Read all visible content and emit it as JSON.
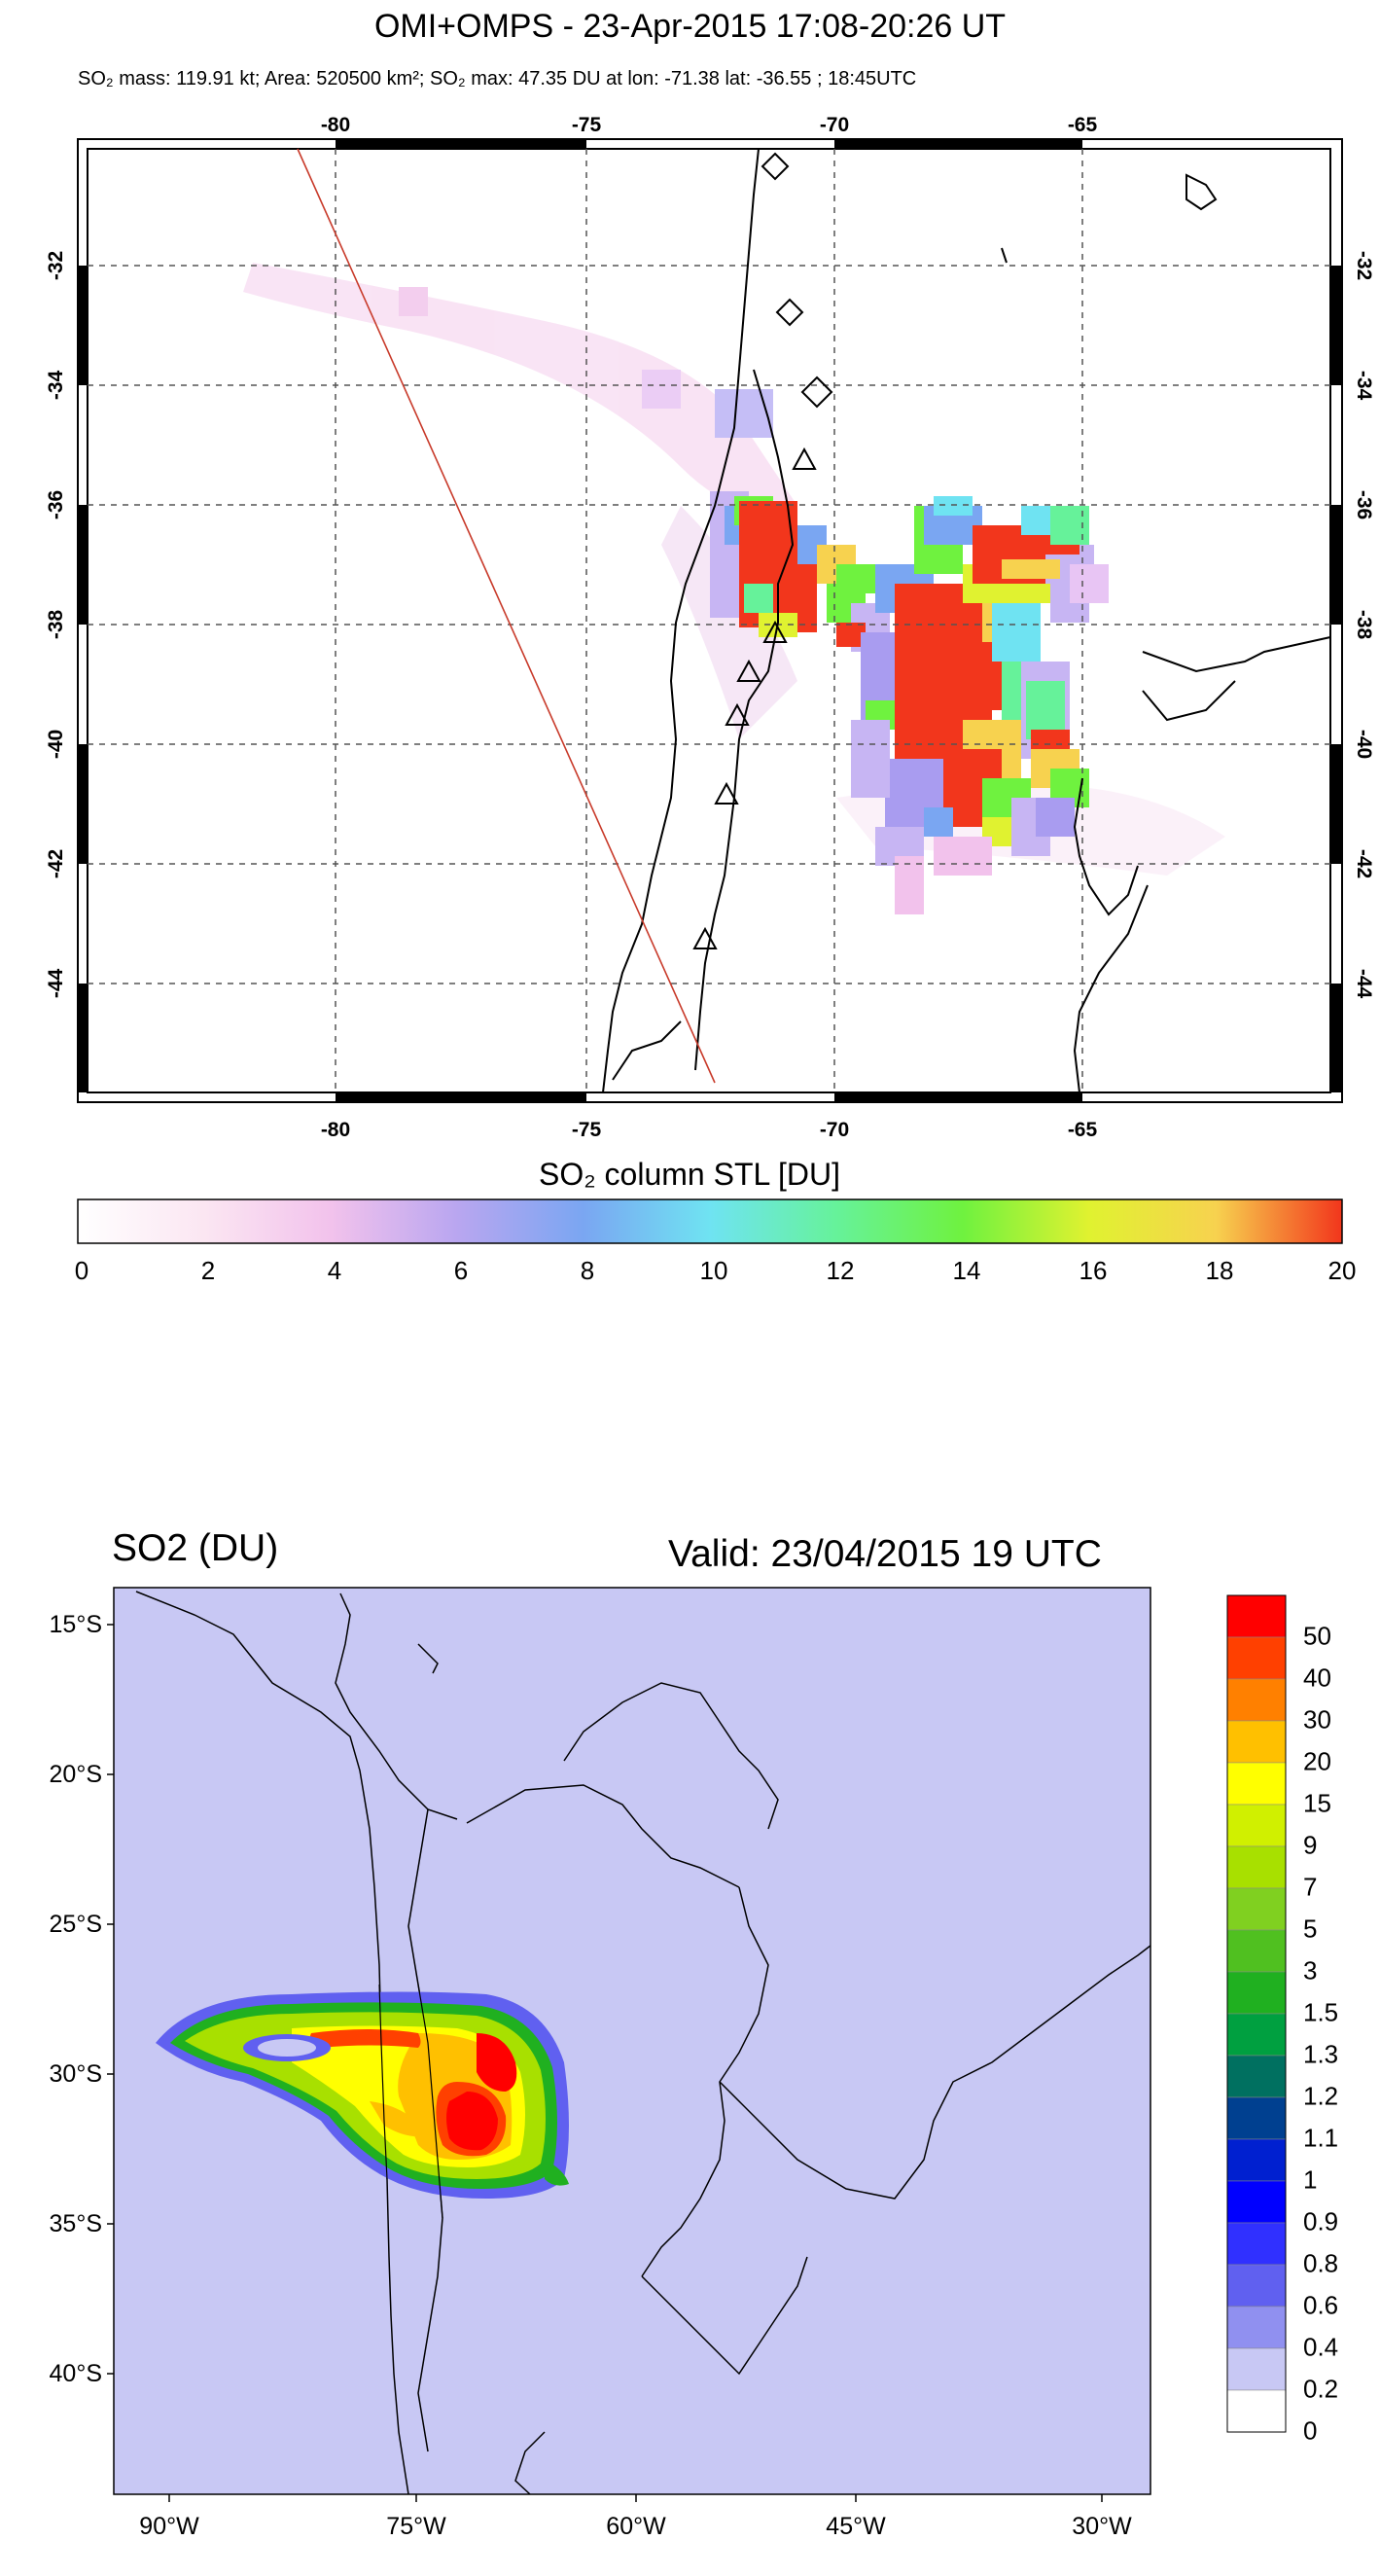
{
  "top_map": {
    "title": "OMI+OMPS - 23-Apr-2015 17:08-20:26 UT",
    "subtitle": "SO₂ mass: 119.91 kt; Area: 520500 km²; SO₂ max: 47.35 DU at lon: -71.38 lat: -36.55 ; 18:45UTC",
    "lon_ticks": [
      "-80",
      "-75",
      "-70",
      "-65"
    ],
    "lat_ticks": [
      "-32",
      "-34",
      "-36",
      "-38",
      "-40",
      "-42",
      "-44"
    ],
    "colorbar": {
      "title": "SO₂ column STL [DU]",
      "ticks": [
        "0",
        "2",
        "4",
        "6",
        "8",
        "10",
        "12",
        "14",
        "16",
        "18",
        "20"
      ],
      "colors": [
        "#ffffff",
        "#fbe6f2",
        "#f2c2ec",
        "#d9a8f2",
        "#a99cf0",
        "#7aa6f2",
        "#6fe3f2",
        "#66f29a",
        "#6ff23f",
        "#e0f230",
        "#f7d24f",
        "#f2361c"
      ]
    },
    "markers": {
      "volcano_symbols": [
        "diamond",
        "triangle"
      ]
    }
  },
  "bottom_map": {
    "title_left": "SO2 (DU)",
    "title_right": "Valid: 23/04/2015  19 UTC",
    "lat_ticks": [
      "15°S",
      "20°S",
      "25°S",
      "30°S",
      "35°S",
      "40°S"
    ],
    "lon_ticks": [
      "90°W",
      "75°W",
      "60°W",
      "45°W",
      "30°W"
    ],
    "background_color": "#c8c8f4",
    "legend": [
      {
        "label": "50",
        "color": "#ff0000"
      },
      {
        "label": "40",
        "color": "#ff4000"
      },
      {
        "label": "30",
        "color": "#ff8000"
      },
      {
        "label": "20",
        "color": "#ffc000"
      },
      {
        "label": "15",
        "color": "#ffff00"
      },
      {
        "label": "9",
        "color": "#d0f000"
      },
      {
        "label": "7",
        "color": "#a8e000"
      },
      {
        "label": "5",
        "color": "#80d020"
      },
      {
        "label": "3",
        "color": "#50c020"
      },
      {
        "label": "1.5",
        "color": "#20b020"
      },
      {
        "label": "1.3",
        "color": "#00a040"
      },
      {
        "label": "1.2",
        "color": "#007060"
      },
      {
        "label": "1.1",
        "color": "#004090"
      },
      {
        "label": "1",
        "color": "#0020d0"
      },
      {
        "label": "0.9",
        "color": "#0000ff"
      },
      {
        "label": "0.8",
        "color": "#3030ff"
      },
      {
        "label": "0.6",
        "color": "#6060f0"
      },
      {
        "label": "0.4",
        "color": "#9090f0"
      },
      {
        "label": "0.2",
        "color": "#c8c8f4"
      },
      {
        "label": "0",
        "color": "#ffffff"
      }
    ]
  }
}
